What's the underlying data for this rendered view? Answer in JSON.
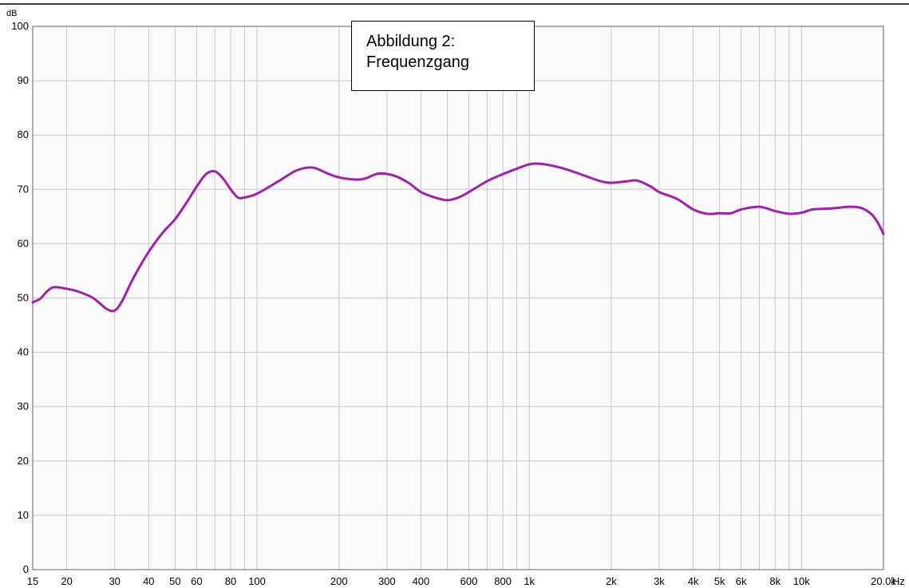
{
  "chart_data": {
    "type": "line",
    "title": "",
    "annotation": [
      "Abbildung 2:",
      "Frequenzgang"
    ],
    "xscale": "log",
    "xlim": [
      15,
      20000
    ],
    "ylim": [
      0,
      100
    ],
    "ylabel": "dB",
    "xunit": "Hz",
    "grid": true,
    "y_ticks": [
      0,
      10,
      20,
      30,
      40,
      50,
      60,
      70,
      80,
      90,
      100
    ],
    "x_ticks": [
      {
        "v": 15,
        "label": "15"
      },
      {
        "v": 20,
        "label": "20"
      },
      {
        "v": 30,
        "label": "30"
      },
      {
        "v": 40,
        "label": "40"
      },
      {
        "v": 50,
        "label": "50"
      },
      {
        "v": 60,
        "label": "60"
      },
      {
        "v": 80,
        "label": "80"
      },
      {
        "v": 100,
        "label": "100"
      },
      {
        "v": 200,
        "label": "200"
      },
      {
        "v": 300,
        "label": "300"
      },
      {
        "v": 400,
        "label": "400"
      },
      {
        "v": 600,
        "label": "600"
      },
      {
        "v": 800,
        "label": "800"
      },
      {
        "v": 1000,
        "label": "1k"
      },
      {
        "v": 2000,
        "label": "2k"
      },
      {
        "v": 3000,
        "label": "3k"
      },
      {
        "v": 4000,
        "label": "4k"
      },
      {
        "v": 5000,
        "label": "5k"
      },
      {
        "v": 6000,
        "label": "6k"
      },
      {
        "v": 8000,
        "label": "8k"
      },
      {
        "v": 10000,
        "label": "10k"
      },
      {
        "v": 20000,
        "label": "20.0k"
      }
    ],
    "x_grid": [
      15,
      20,
      30,
      40,
      50,
      60,
      70,
      80,
      90,
      100,
      200,
      300,
      400,
      500,
      600,
      700,
      800,
      900,
      1000,
      2000,
      3000,
      4000,
      5000,
      6000,
      7000,
      8000,
      9000,
      10000,
      20000
    ],
    "series": [
      {
        "color": "#a020a8",
        "points": [
          [
            15,
            49.2
          ],
          [
            16,
            49.9
          ],
          [
            17,
            51.3
          ],
          [
            18,
            52.0
          ],
          [
            20,
            51.7
          ],
          [
            22,
            51.2
          ],
          [
            25,
            50.0
          ],
          [
            28,
            48.0
          ],
          [
            30,
            47.7
          ],
          [
            32,
            49.5
          ],
          [
            35,
            53.5
          ],
          [
            40,
            58.5
          ],
          [
            45,
            62.0
          ],
          [
            50,
            64.5
          ],
          [
            55,
            67.5
          ],
          [
            60,
            70.5
          ],
          [
            65,
            72.8
          ],
          [
            70,
            73.3
          ],
          [
            75,
            72.0
          ],
          [
            80,
            70.0
          ],
          [
            85,
            68.5
          ],
          [
            90,
            68.5
          ],
          [
            100,
            69.2
          ],
          [
            120,
            71.5
          ],
          [
            140,
            73.5
          ],
          [
            160,
            74.0
          ],
          [
            180,
            73.0
          ],
          [
            200,
            72.2
          ],
          [
            230,
            71.8
          ],
          [
            250,
            72.0
          ],
          [
            280,
            72.9
          ],
          [
            320,
            72.5
          ],
          [
            360,
            71.2
          ],
          [
            400,
            69.5
          ],
          [
            450,
            68.5
          ],
          [
            500,
            68.0
          ],
          [
            550,
            68.5
          ],
          [
            600,
            69.5
          ],
          [
            700,
            71.5
          ],
          [
            800,
            72.8
          ],
          [
            900,
            73.8
          ],
          [
            1000,
            74.6
          ],
          [
            1100,
            74.7
          ],
          [
            1300,
            74.0
          ],
          [
            1500,
            73.0
          ],
          [
            1800,
            71.6
          ],
          [
            2000,
            71.2
          ],
          [
            2300,
            71.5
          ],
          [
            2500,
            71.6
          ],
          [
            2800,
            70.5
          ],
          [
            3000,
            69.5
          ],
          [
            3500,
            68.2
          ],
          [
            4000,
            66.3
          ],
          [
            4500,
            65.5
          ],
          [
            5000,
            65.6
          ],
          [
            5500,
            65.6
          ],
          [
            6000,
            66.3
          ],
          [
            7000,
            66.8
          ],
          [
            8000,
            66.0
          ],
          [
            9000,
            65.5
          ],
          [
            10000,
            65.7
          ],
          [
            11000,
            66.3
          ],
          [
            13000,
            66.5
          ],
          [
            15000,
            66.8
          ],
          [
            16500,
            66.6
          ],
          [
            18000,
            65.5
          ],
          [
            19000,
            64.0
          ],
          [
            20000,
            61.8
          ]
        ]
      }
    ]
  }
}
